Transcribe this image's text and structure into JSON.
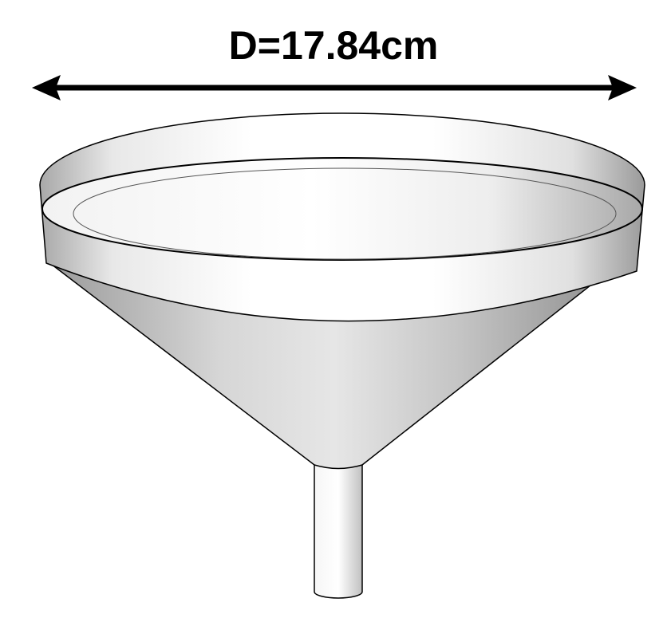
{
  "dimension": {
    "label": "D=17.84cm"
  },
  "colors": {
    "outline": "#000000",
    "arrow": "#000000",
    "rim_light": "#ffffff",
    "rim_shade": "#9a9a9a",
    "cone_light": "#e4e4e4",
    "cone_shade": "#8c8c8c",
    "stem_light": "#ffffff",
    "stem_shade": "#bdbdbd"
  }
}
